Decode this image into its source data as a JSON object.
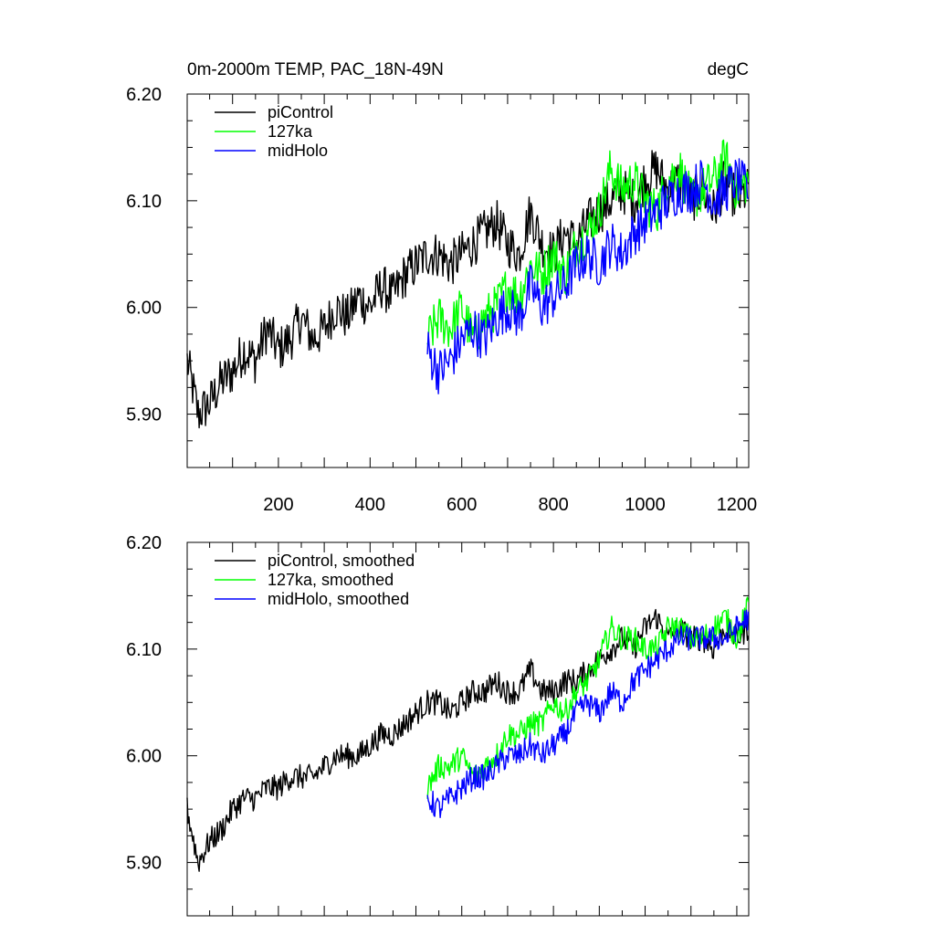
{
  "figure": {
    "title_left": "0m-2000m TEMP, PAC_18N-49N",
    "title_right": "degC"
  },
  "chart_data": [
    {
      "type": "line",
      "panel": "top",
      "title": "0m-2000m TEMP, PAC_18N-49N",
      "units": "degC",
      "xlim": [
        1,
        1226
      ],
      "ylim": [
        5.85,
        6.2
      ],
      "xticks": [
        200,
        400,
        600,
        800,
        1000,
        1200
      ],
      "xtick_labels": [
        "200",
        "400",
        "600",
        "800",
        "1000",
        "1200"
      ],
      "yticks": [
        5.9,
        6.0,
        6.1,
        6.2
      ],
      "ytick_labels": [
        "5.90",
        "6.00",
        "6.10",
        "6.20"
      ],
      "legend_position": "top-left",
      "series": [
        {
          "name": "piControl",
          "color": "#000000",
          "x": [
            1,
            25,
            50,
            75,
            100,
            125,
            150,
            175,
            200,
            225,
            250,
            275,
            300,
            325,
            350,
            375,
            400,
            425,
            450,
            475,
            500,
            525,
            550,
            575,
            600,
            625,
            650,
            675,
            700,
            725,
            750,
            775,
            800,
            825,
            850,
            875,
            900,
            925,
            950,
            975,
            1000,
            1025,
            1050,
            1075,
            1100,
            1125,
            1150,
            1175,
            1200,
            1225
          ],
          "values": [
            5.95,
            5.9,
            5.91,
            5.93,
            5.94,
            5.96,
            5.95,
            5.98,
            5.96,
            5.97,
            5.99,
            5.97,
            5.98,
            6.0,
            5.99,
            6.01,
            6.0,
            6.02,
            6.01,
            6.03,
            6.04,
            6.05,
            6.05,
            6.04,
            6.05,
            6.06,
            6.07,
            6.08,
            6.06,
            6.05,
            6.09,
            6.06,
            6.05,
            6.07,
            6.06,
            6.08,
            6.09,
            6.1,
            6.11,
            6.1,
            6.12,
            6.13,
            6.11,
            6.12,
            6.1,
            6.11,
            6.09,
            6.12,
            6.1,
            6.11
          ]
        },
        {
          "name": "127ka",
          "color": "#00ff00",
          "x": [
            525,
            550,
            575,
            600,
            625,
            650,
            675,
            700,
            725,
            750,
            775,
            800,
            825,
            850,
            875,
            900,
            925,
            950,
            975,
            1000,
            1025,
            1050,
            1075,
            1100,
            1125,
            1150,
            1175,
            1200,
            1225
          ],
          "values": [
            5.97,
            5.99,
            5.98,
            6.0,
            5.97,
            5.99,
            6.0,
            6.02,
            6.01,
            6.04,
            6.03,
            6.05,
            6.03,
            6.06,
            6.07,
            6.09,
            6.13,
            6.11,
            6.12,
            6.1,
            6.09,
            6.12,
            6.13,
            6.1,
            6.11,
            6.12,
            6.14,
            6.11,
            6.12
          ]
        },
        {
          "name": "midHolo",
          "color": "#0000ff",
          "x": [
            525,
            550,
            575,
            600,
            625,
            650,
            675,
            700,
            725,
            750,
            775,
            800,
            825,
            850,
            875,
            900,
            925,
            950,
            975,
            1000,
            1025,
            1050,
            1075,
            1100,
            1125,
            1150,
            1175,
            1200,
            1225
          ],
          "values": [
            5.96,
            5.94,
            5.95,
            5.97,
            5.98,
            5.97,
            5.99,
            6.0,
            5.99,
            6.02,
            6.0,
            6.01,
            6.02,
            6.04,
            6.05,
            6.04,
            6.06,
            6.05,
            6.07,
            6.08,
            6.09,
            6.1,
            6.11,
            6.11,
            6.12,
            6.1,
            6.11,
            6.12,
            6.11
          ]
        }
      ]
    },
    {
      "type": "line",
      "panel": "bottom",
      "xlim": [
        1,
        1226
      ],
      "ylim": [
        5.85,
        6.2
      ],
      "yticks": [
        5.9,
        6.0,
        6.1,
        6.2
      ],
      "ytick_labels": [
        "5.90",
        "6.00",
        "6.10",
        "6.20"
      ],
      "legend_position": "top-left",
      "series": [
        {
          "name": "piControl, smoothed",
          "color": "#000000",
          "x": [
            1,
            25,
            50,
            75,
            100,
            125,
            150,
            175,
            200,
            225,
            250,
            275,
            300,
            325,
            350,
            375,
            400,
            425,
            450,
            475,
            500,
            525,
            550,
            575,
            600,
            625,
            650,
            675,
            700,
            725,
            750,
            775,
            800,
            825,
            850,
            875,
            900,
            925,
            950,
            975,
            1000,
            1025,
            1050,
            1075,
            1100,
            1125,
            1150,
            1175,
            1200,
            1225
          ],
          "values": [
            5.95,
            5.9,
            5.92,
            5.93,
            5.95,
            5.96,
            5.96,
            5.97,
            5.97,
            5.98,
            5.98,
            5.98,
            5.99,
            6.0,
            6.0,
            6.0,
            6.01,
            6.02,
            6.02,
            6.03,
            6.04,
            6.05,
            6.05,
            6.04,
            6.05,
            6.06,
            6.06,
            6.07,
            6.06,
            6.06,
            6.08,
            6.06,
            6.06,
            6.07,
            6.07,
            6.08,
            6.09,
            6.1,
            6.11,
            6.1,
            6.12,
            6.13,
            6.11,
            6.12,
            6.11,
            6.11,
            6.1,
            6.12,
            6.11,
            6.12
          ]
        },
        {
          "name": "127ka, smoothed",
          "color": "#00ff00",
          "x": [
            525,
            550,
            575,
            600,
            625,
            650,
            675,
            700,
            725,
            750,
            775,
            800,
            825,
            850,
            875,
            900,
            925,
            950,
            975,
            1000,
            1025,
            1050,
            1075,
            1100,
            1125,
            1150,
            1175,
            1200,
            1225
          ],
          "values": [
            5.97,
            5.99,
            5.99,
            6.0,
            5.98,
            5.99,
            6.0,
            6.02,
            6.02,
            6.03,
            6.03,
            6.05,
            6.04,
            6.06,
            6.07,
            6.09,
            6.12,
            6.11,
            6.11,
            6.1,
            6.1,
            6.12,
            6.12,
            6.11,
            6.11,
            6.12,
            6.13,
            6.11,
            6.14
          ]
        },
        {
          "name": "midHolo, smoothed",
          "color": "#0000ff",
          "x": [
            525,
            550,
            575,
            600,
            625,
            650,
            675,
            700,
            725,
            750,
            775,
            800,
            825,
            850,
            875,
            900,
            925,
            950,
            975,
            1000,
            1025,
            1050,
            1075,
            1100,
            1125,
            1150,
            1175,
            1200,
            1225
          ],
          "values": [
            5.96,
            5.95,
            5.96,
            5.97,
            5.98,
            5.98,
            5.99,
            6.0,
            6.0,
            6.01,
            6.0,
            6.01,
            6.02,
            6.04,
            6.05,
            6.04,
            6.06,
            6.05,
            6.07,
            6.08,
            6.09,
            6.1,
            6.11,
            6.11,
            6.11,
            6.11,
            6.11,
            6.12,
            6.13
          ]
        }
      ]
    }
  ]
}
